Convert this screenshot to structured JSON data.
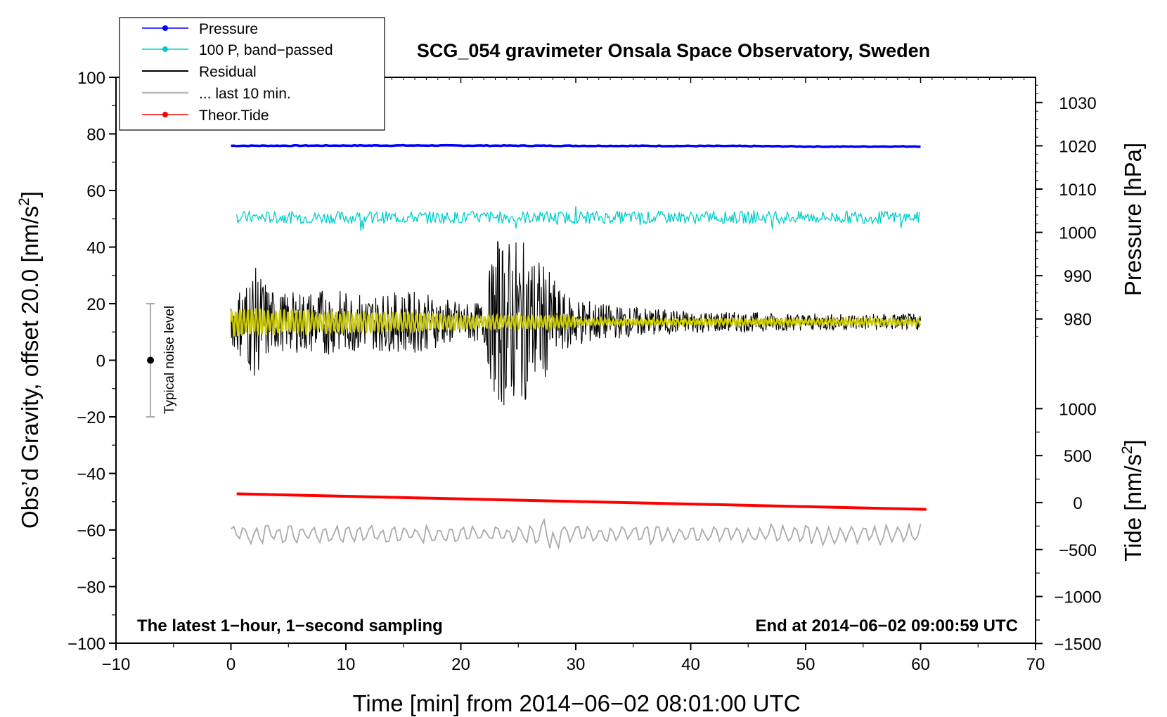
{
  "chart_data": {
    "type": "line",
    "title": "SCG_054 gravimeter Onsala Space Observatory, Sweden",
    "xlabel": "Time [min] from 2014−06−02 08:01:00 UTC",
    "ylabel": "Obs’d Gravity, offset 20.0 [nm/s",
    "ylabel_sup": "2",
    "ylabel_end": "]",
    "y2_pressure_label": "Pressure [hPa]",
    "y2_tide_label": "Tide [nm/s",
    "y2_tide_sup": "2",
    "y2_tide_end": "]",
    "xlim": [
      -10,
      70
    ],
    "ylim": [
      -100,
      100
    ],
    "x_ticks": [
      -10,
      0,
      10,
      20,
      30,
      40,
      50,
      60,
      70
    ],
    "x_tick_labels": [
      "−10",
      "0",
      "10",
      "20",
      "30",
      "40",
      "50",
      "60",
      "70"
    ],
    "y_ticks": [
      -100,
      -80,
      -60,
      -40,
      -20,
      0,
      20,
      40,
      60,
      80,
      100
    ],
    "y_tick_labels": [
      "−100",
      "−80",
      "−60",
      "−40",
      "−20",
      "0",
      "20",
      "40",
      "60",
      "80",
      "100"
    ],
    "pressure_axis": {
      "ticks": [
        980,
        990,
        1000,
        1010,
        1020,
        1030
      ],
      "tick_labels": [
        "980",
        "990",
        "1000",
        "1010",
        "1020",
        "1030"
      ],
      "gravity_at_980": 14.6,
      "gravity_per_hpa": 1.53
    },
    "tide_axis": {
      "ticks": [
        -1500,
        -1000,
        -500,
        0,
        500,
        1000
      ],
      "tick_labels": [
        "−1500",
        "−1000",
        "−500",
        "0",
        "500",
        "1000"
      ],
      "gravity_at_0": -50.3,
      "gravity_per_unit": 0.0332
    },
    "series": [
      {
        "name": "Pressure",
        "color": "#0000ff",
        "style": "line-dot",
        "x": [
          0,
          15,
          30,
          45,
          52,
          60
        ],
        "y": [
          75.8,
          75.9,
          75.8,
          75.7,
          75.5,
          75.6
        ]
      },
      {
        "name": "100 P, band−passed",
        "color": "#00cccc",
        "style": "line-dot",
        "baseline": 50.5,
        "amplitude": 2.2,
        "x_range": [
          0.5,
          60
        ]
      },
      {
        "name": "Residual",
        "color": "#000000",
        "style": "line",
        "baseline": 13.5,
        "x_range": [
          0,
          60
        ],
        "envelope_x": [
          0,
          2,
          4,
          8,
          12,
          16,
          20,
          22,
          23,
          25,
          27,
          29,
          31,
          33,
          40,
          50,
          60
        ],
        "envelope_amp": [
          8,
          20,
          10,
          12,
          10,
          11,
          7,
          7,
          30,
          30,
          22,
          10,
          8,
          6,
          4,
          3,
          3
        ]
      },
      {
        "name": "... last 10 min.",
        "color": "#aaaaaa",
        "style": "line",
        "baseline": -61.5,
        "amplitude": 3.5,
        "x_range": [
          0,
          60
        ]
      },
      {
        "name": "Theor.Tide",
        "color": "#ff0000",
        "style": "line-dot",
        "x": [
          0.5,
          60.5
        ],
        "y": [
          -47.2,
          -52.7
        ]
      },
      {
        "name": "smoothed residual",
        "color": "#cccc00",
        "style": "line",
        "baseline": 13.5,
        "x_range": [
          0,
          60
        ]
      }
    ],
    "noise_bar": {
      "label": "Typical noise level",
      "x": -7,
      "y_center": 0,
      "y_low": -20,
      "y_high": 20
    },
    "annotations": {
      "left": "The latest 1−hour, 1−second sampling",
      "right": "End at 2014−06−02 09:00:59 UTC"
    },
    "legend": {
      "placement": "top-left",
      "entries": [
        "Pressure",
        "100 P, band−passed",
        "Residual",
        "... last 10 min.",
        "Theor.Tide"
      ]
    }
  }
}
